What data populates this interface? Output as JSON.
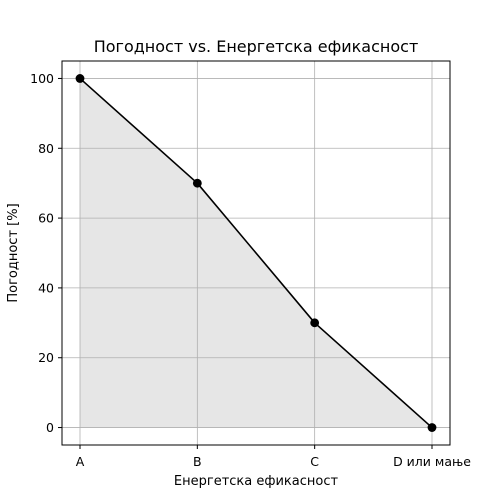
{
  "chart_data": {
    "type": "area",
    "title": "Погодност vs. Енергетска ефикасност",
    "xlabel": "Енергетска ефикасност",
    "ylabel": "Погодност [%]",
    "categories": [
      "A",
      "B",
      "C",
      "D или мање"
    ],
    "series": [
      {
        "values": [
          100,
          70,
          30,
          0
        ]
      }
    ],
    "ylim": [
      -5,
      105
    ],
    "yticks": [
      0,
      20,
      40,
      60,
      80,
      100
    ],
    "yticklabels": [
      "0",
      "20",
      "40",
      "60",
      "80",
      "100"
    ],
    "grid": true,
    "colors": {
      "line": "#000000",
      "marker": "#000000",
      "fill": "#e6e6e6",
      "grid": "#b0b0b0",
      "axis": "#000000"
    }
  }
}
